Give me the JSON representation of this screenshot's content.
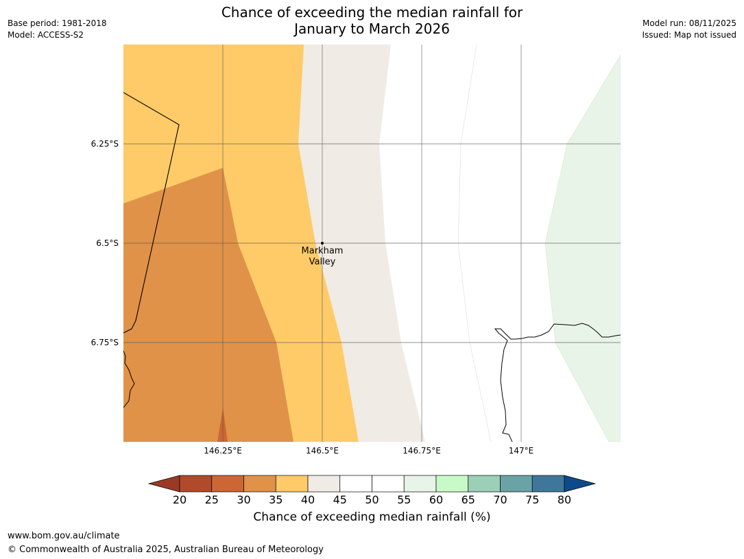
{
  "header": {
    "base_period": "Base period: 1981-2018",
    "model": "Model: ACCESS-S2",
    "model_run": "Model run: 08/11/2025",
    "issued": "Issued: Map not issued",
    "title_line1": "Chance of exceeding the median rainfall for",
    "title_line2": "January to March 2026"
  },
  "map": {
    "lat_labels": [
      "6.25°S",
      "6.5°S",
      "6.75°S"
    ],
    "lon_labels": [
      "146.25°E",
      "146.5°E",
      "146.75°E",
      "147°E"
    ],
    "place": {
      "name_line1": "Markham",
      "name_line2": "Valley"
    }
  },
  "colorbar": {
    "title": "Chance of exceeding median rainfall (%)",
    "ticks": [
      "20",
      "25",
      "30",
      "35",
      "40",
      "45",
      "50",
      "55",
      "60",
      "65",
      "70",
      "75",
      "80"
    ],
    "under_color": "#9a3a24",
    "over_color": "#0e4a8a",
    "colors": [
      "#b04a2a",
      "#cc6633",
      "#e09248",
      "#fecb68",
      "#f0ebe5",
      "#ffffff",
      "#ffffff",
      "#e8f4e8",
      "#c8fac8",
      "#9ccfb8",
      "#6aa3a6",
      "#3e7799"
    ]
  },
  "footer": {
    "url": "www.bom.gov.au/climate",
    "copyright": "© Commonwealth of Australia 2025, Australian Bureau of Meteorology"
  }
}
